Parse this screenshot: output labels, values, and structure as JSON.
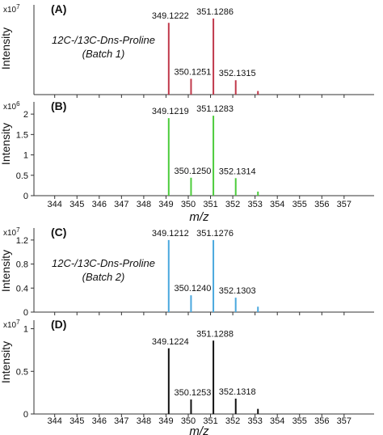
{
  "x_ticks": [
    "344",
    "345",
    "346",
    "347",
    "348",
    "349",
    "350",
    "351",
    "352",
    "353",
    "354",
    "355",
    "356",
    "357"
  ],
  "xlabel": "m/z",
  "ylabel": "Intensity",
  "chart_data": [
    {
      "type": "bar",
      "panel_label": "(A)",
      "multiplier": "x10",
      "multiplier_exp": "7",
      "color": "#c0394b",
      "annotation_line1": "12C-/13C-Dns-Proline",
      "annotation_line2": "(Batch 1)",
      "y_ticks": [],
      "ylim": [
        0,
        1.25
      ],
      "xlim": [
        343.5,
        357.5
      ],
      "peaks": [
        {
          "x": 349.1222,
          "y": 1.0,
          "label": "349.1222"
        },
        {
          "x": 350.1251,
          "y": 0.22,
          "label": "350.1251"
        },
        {
          "x": 351.1286,
          "y": 1.06,
          "label": "351.1286"
        },
        {
          "x": 352.1315,
          "y": 0.2,
          "label": "352.1315"
        },
        {
          "x": 353.13,
          "y": 0.05,
          "label": ""
        }
      ]
    },
    {
      "type": "bar",
      "panel_label": "(B)",
      "multiplier": "x10",
      "multiplier_exp": "6",
      "color": "#4ccc3c",
      "annotation_line1": "",
      "annotation_line2": "",
      "y_ticks": [
        "0",
        "0.5",
        "1",
        "1.5",
        "2"
      ],
      "ylim": [
        0,
        2.3
      ],
      "xlim": [
        343.5,
        357.5
      ],
      "peaks": [
        {
          "x": 349.1219,
          "y": 1.9,
          "label": "349.1219"
        },
        {
          "x": 350.125,
          "y": 0.44,
          "label": "350.1250"
        },
        {
          "x": 351.1283,
          "y": 1.96,
          "label": "351.1283"
        },
        {
          "x": 352.1314,
          "y": 0.43,
          "label": "352.1314"
        },
        {
          "x": 353.13,
          "y": 0.1,
          "label": ""
        }
      ]
    },
    {
      "type": "bar",
      "panel_label": "(C)",
      "multiplier": "x10",
      "multiplier_exp": "7",
      "color": "#4aa8de",
      "annotation_line1": "12C-/13C-Dns-Proline",
      "annotation_line2": "(Batch 2)",
      "y_ticks": [
        "0",
        "0.4",
        "0.8",
        "1.2"
      ],
      "ylim": [
        0,
        1.4
      ],
      "xlim": [
        343.5,
        357.5
      ],
      "peaks": [
        {
          "x": 349.1212,
          "y": 1.2,
          "label": "349.1212"
        },
        {
          "x": 350.124,
          "y": 0.28,
          "label": "350.1240"
        },
        {
          "x": 351.1276,
          "y": 1.2,
          "label": "351.1276"
        },
        {
          "x": 352.1303,
          "y": 0.24,
          "label": "352.1303"
        },
        {
          "x": 353.13,
          "y": 0.09,
          "label": ""
        }
      ]
    },
    {
      "type": "bar",
      "panel_label": "(D)",
      "multiplier": "x10",
      "multiplier_exp": "7",
      "color": "#111111",
      "annotation_line1": "",
      "annotation_line2": "",
      "y_ticks": [
        "0",
        "0.5",
        "1"
      ],
      "ylim": [
        0,
        1.1
      ],
      "xlim": [
        343.5,
        357.5
      ],
      "peaks": [
        {
          "x": 349.1224,
          "y": 0.77,
          "label": "349.1224"
        },
        {
          "x": 350.1253,
          "y": 0.17,
          "label": "350.1253"
        },
        {
          "x": 351.1288,
          "y": 0.86,
          "label": "351.1288"
        },
        {
          "x": 352.1318,
          "y": 0.18,
          "label": "352.1318"
        },
        {
          "x": 353.13,
          "y": 0.06,
          "label": ""
        }
      ]
    }
  ]
}
